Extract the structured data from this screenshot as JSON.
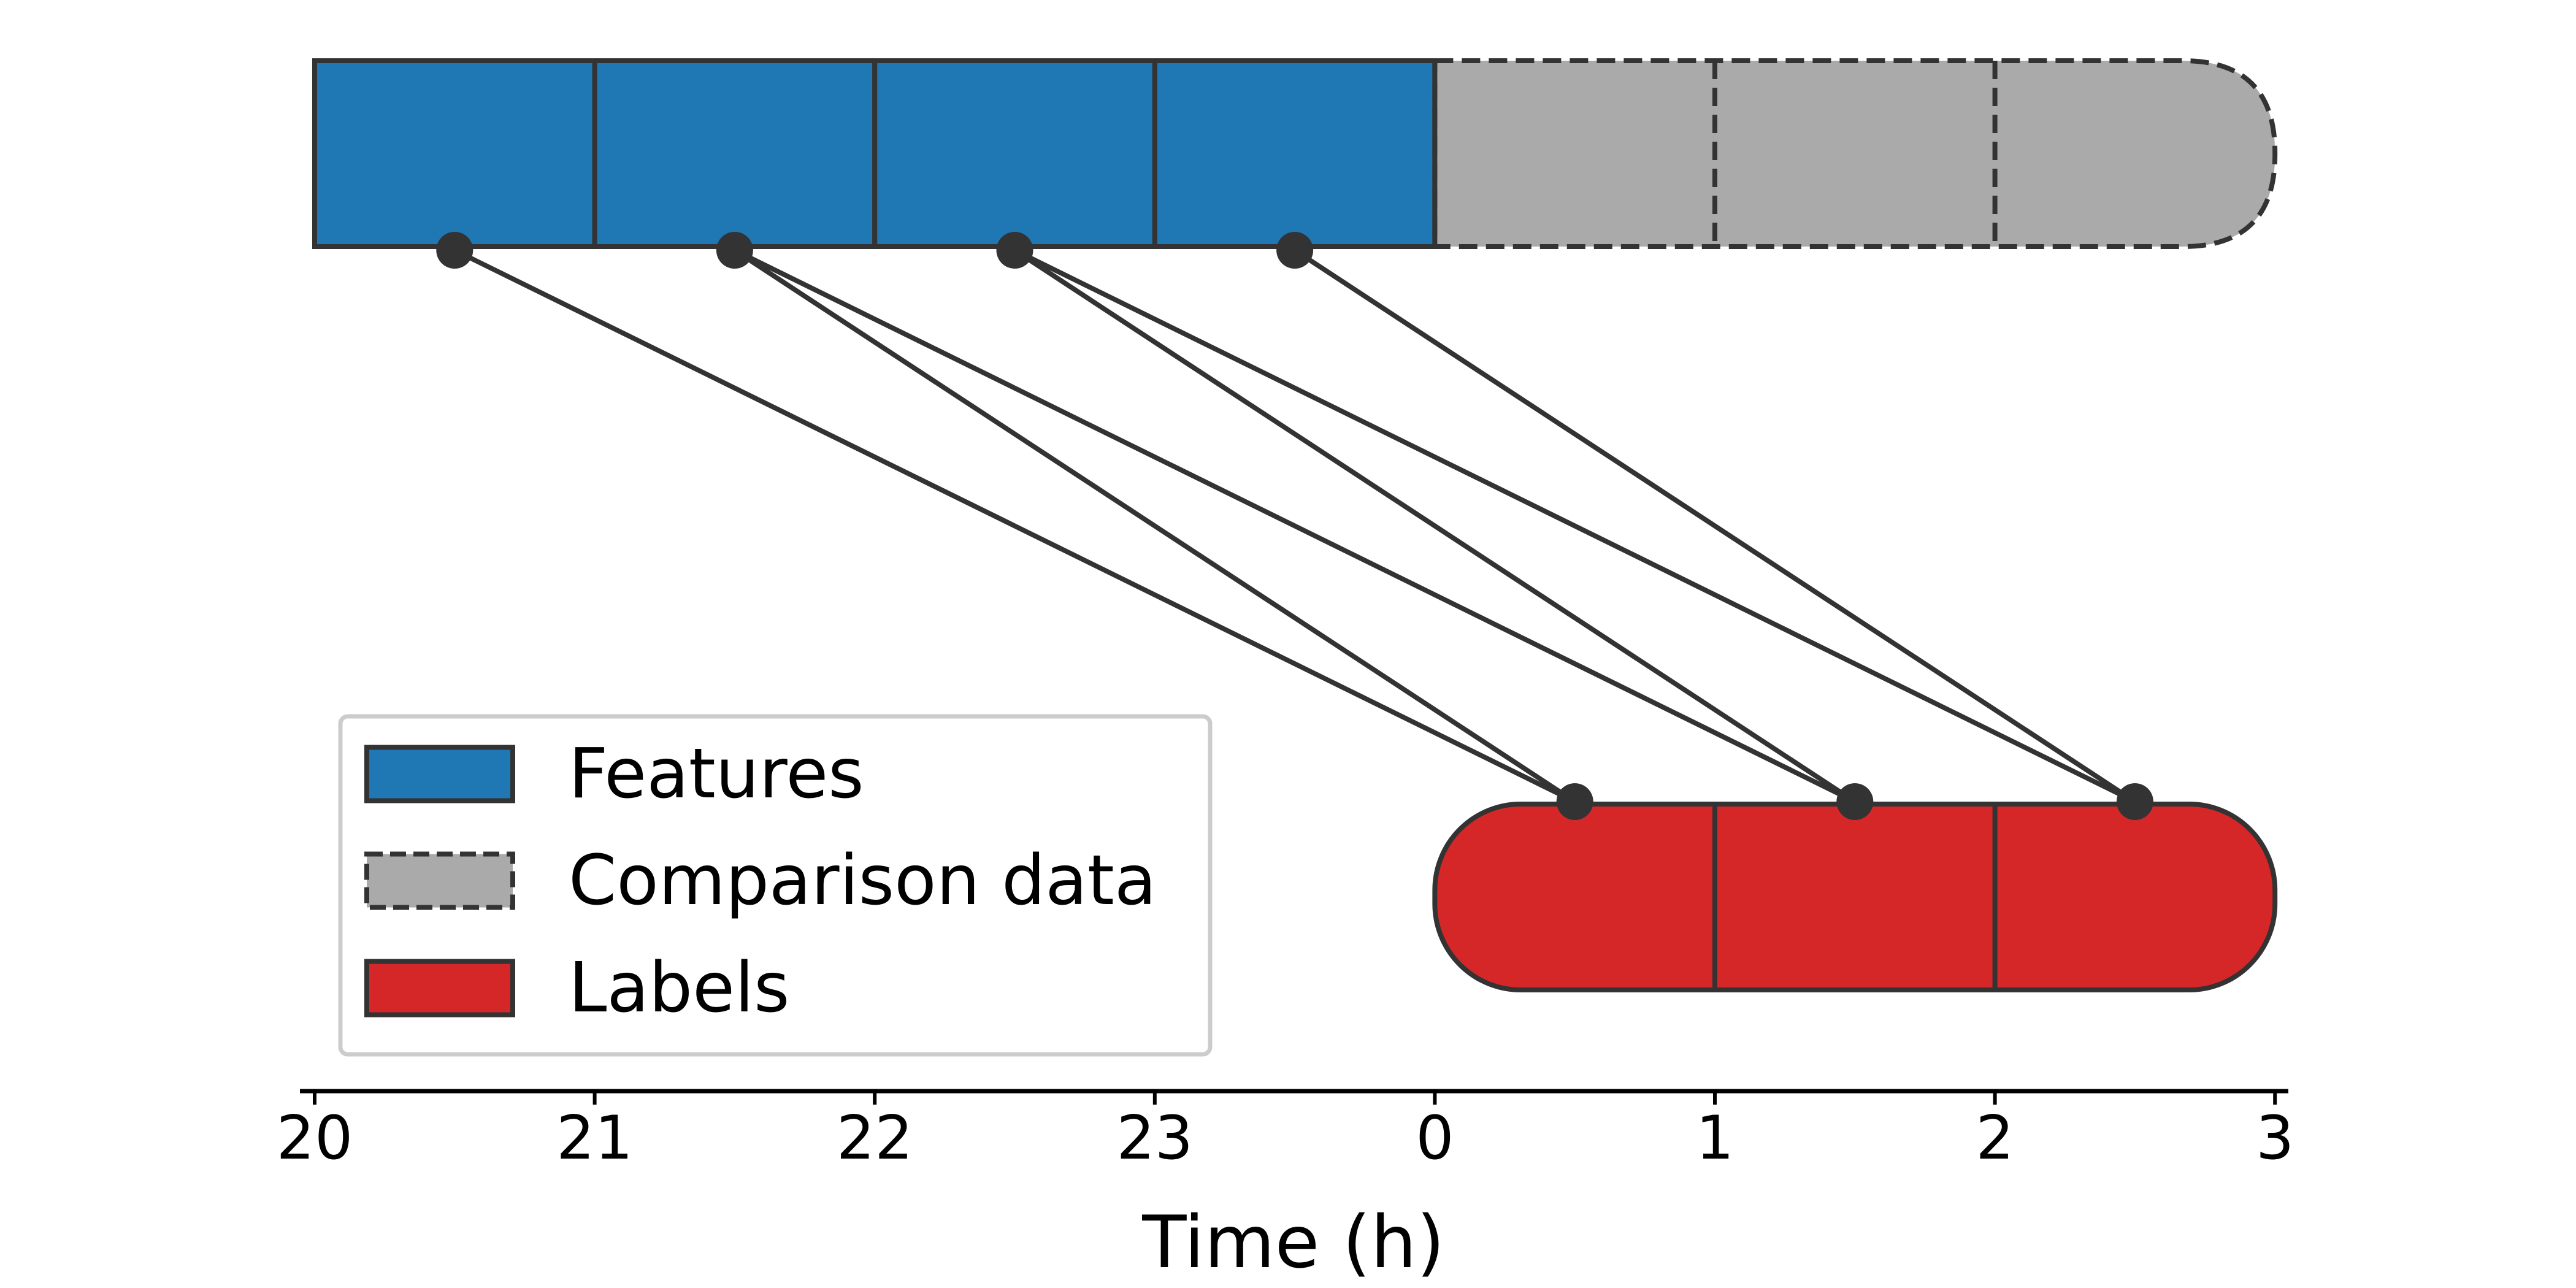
{
  "chart_data": {
    "type": "diagram",
    "xlabel": "Time (h)",
    "axis_ticks": [
      "20",
      "21",
      "22",
      "23",
      "0",
      "1",
      "2",
      "3"
    ],
    "axis_range": [
      20,
      27
    ],
    "rows": {
      "features": {
        "start": 20,
        "end": 24,
        "cells": 4,
        "style": "solid"
      },
      "comparison": {
        "start": 24,
        "end": 27,
        "cells": 3,
        "style": "dashed",
        "rounded_end": "right"
      },
      "labels": {
        "start": 24,
        "end": 27,
        "cells": 3,
        "style": "solid",
        "rounded_end": "both"
      }
    },
    "feature_points": [
      20.5,
      21.5,
      22.5,
      23.5
    ],
    "label_points": [
      24.5,
      25.5,
      26.5
    ],
    "connections": [
      {
        "from": 20.5,
        "to": 24.5
      },
      {
        "from": 21.5,
        "to": 24.5
      },
      {
        "from": 21.5,
        "to": 25.5
      },
      {
        "from": 22.5,
        "to": 25.5
      },
      {
        "from": 22.5,
        "to": 26.5
      },
      {
        "from": 23.5,
        "to": 26.5
      }
    ],
    "legend": {
      "placement": "lower-left",
      "entries": [
        {
          "label": "Features",
          "color": "#1f77b4",
          "style": "solid"
        },
        {
          "label": "Comparison data",
          "color": "#aaaaaa",
          "style": "dashed"
        },
        {
          "label": "Labels",
          "color": "#d62728",
          "style": "solid"
        }
      ]
    }
  },
  "colors": {
    "features": "#1f77b4",
    "comparison": "#aaaaaa",
    "labels": "#d62728",
    "edge": "#333333",
    "axis": "#000000",
    "legend_frame": "#cccccc"
  }
}
